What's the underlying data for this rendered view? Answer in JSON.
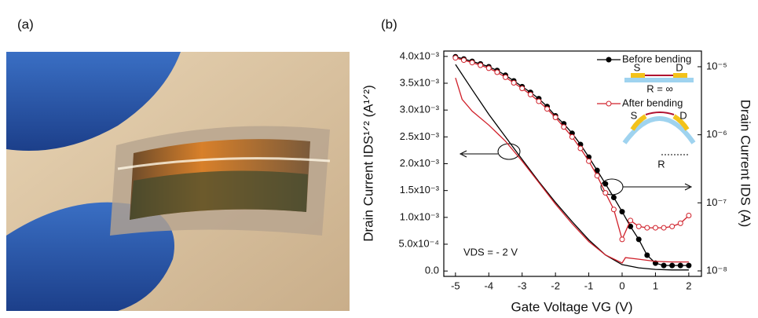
{
  "panel_a": {
    "label": "(a)"
  },
  "chart_data": {
    "type": "line",
    "panel_label": "(b)",
    "x_label": "Gate Voltage VG (V)",
    "y_label": "Drain Current IDS¹ᐟ² (A¹ᐟ²)",
    "y2_label": "Drain Current IDS (A)",
    "annotation": "VDS = - 2 V",
    "inset_labels": {
      "source": "S",
      "drain": "D",
      "flat_radius": "R = ∞",
      "bent_radius": "R"
    },
    "xlim": [
      -5.35,
      2.38
    ],
    "xticks": [
      -5,
      -4,
      -3,
      -2,
      -1,
      0,
      1,
      2
    ],
    "ylim": [
      -0.0001,
      0.0041
    ],
    "yticks": [
      {
        "value": 0,
        "label": "0.0"
      },
      {
        "value": 0.0005,
        "label": "5.0x10⁻⁴"
      },
      {
        "value": 0.001,
        "label": "1.0x10⁻³"
      },
      {
        "value": 0.0015,
        "label": "1.5x10⁻³"
      },
      {
        "value": 0.002,
        "label": "2.0x10⁻³"
      },
      {
        "value": 0.0025,
        "label": "2.5x10⁻³"
      },
      {
        "value": 0.003,
        "label": "3.0x10⁻³"
      },
      {
        "value": 0.0035,
        "label": "3.5x10⁻³"
      },
      {
        "value": 0.004,
        "label": "4.0x10⁻³"
      }
    ],
    "y2lim": [
      8.3e-09,
      1.7e-05
    ],
    "y2_log": true,
    "y2ticks": [
      {
        "value": 1e-08,
        "label": "10⁻⁸"
      },
      {
        "value": 1e-07,
        "label": "10⁻⁷"
      },
      {
        "value": 1e-06,
        "label": "10⁻⁶"
      },
      {
        "value": 1e-05,
        "label": "10⁻⁵"
      }
    ],
    "series": [
      {
        "name": "Before bending",
        "color": "#000000",
        "marker": "dot",
        "axis": "y2",
        "x": [
          -5,
          -4.75,
          -4.5,
          -4.25,
          -4,
          -3.75,
          -3.5,
          -3.25,
          -3,
          -2.75,
          -2.5,
          -2.25,
          -2,
          -1.75,
          -1.5,
          -1.25,
          -1,
          -0.75,
          -0.5,
          -0.25,
          0,
          0.25,
          0.5,
          0.75,
          1,
          1.25,
          1.5,
          1.75,
          2
        ],
        "values": [
          1.4e-05,
          1.3e-05,
          1.2e-05,
          1.1e-05,
          1e-05,
          8.8e-06,
          7.5e-06,
          6.2e-06,
          5.1e-06,
          4.2e-06,
          3.4e-06,
          2.6e-06,
          1.9e-06,
          1.45e-06,
          1.05e-06,
          7.2e-07,
          4.7e-07,
          3e-07,
          1.9e-07,
          1.2e-07,
          7.4e-08,
          4.5e-08,
          2.9e-08,
          1.7e-08,
          1.3e-08,
          1.2e-08,
          1.2e-08,
          1.2e-08,
          1.2e-08
        ]
      },
      {
        "name": "After bending",
        "color": "#d0202a",
        "marker": "circle",
        "axis": "y2",
        "x": [
          -5,
          -4.75,
          -4.5,
          -4.25,
          -4,
          -3.75,
          -3.5,
          -3.25,
          -3,
          -2.75,
          -2.5,
          -2.25,
          -2,
          -1.75,
          -1.5,
          -1.25,
          -1,
          -0.75,
          -0.5,
          -0.25,
          0,
          0.25,
          0.5,
          0.75,
          1,
          1.25,
          1.5,
          1.75,
          2
        ],
        "values": [
          1.35e-05,
          1.25e-05,
          1.15e-05,
          1.05e-05,
          9.5e-06,
          8.3e-06,
          7e-06,
          5.8e-06,
          4.8e-06,
          3.9e-06,
          3.1e-06,
          2.4e-06,
          1.8e-06,
          1.3e-06,
          9.3e-07,
          6.3e-07,
          4.1e-07,
          2.5e-07,
          1.4e-07,
          8e-08,
          2.9e-08,
          5.5e-08,
          4.5e-08,
          4.3e-08,
          4.3e-08,
          4.3e-08,
          4.5e-08,
          5e-08,
          6.5e-08
        ]
      },
      {
        "name": "Before bending",
        "color": "#000000",
        "axis": "y",
        "x": [
          -5,
          -4.5,
          -4,
          -3.5,
          -3,
          -2.5,
          -2,
          -1.5,
          -1,
          -0.5,
          0,
          0.5,
          1,
          1.5,
          2
        ],
        "values": [
          0.00385,
          0.00338,
          0.00292,
          0.0025,
          0.00208,
          0.00167,
          0.00128,
          0.00092,
          0.00058,
          0.0003,
          0.00012,
          6e-05,
          3e-05,
          2e-05,
          2e-05
        ]
      },
      {
        "name": "After bending",
        "color": "#d0202a",
        "axis": "y",
        "x": [
          -5,
          -4.8,
          -4.5,
          -4,
          -3.5,
          -3,
          -2.5,
          -2,
          -1.5,
          -1,
          -0.5,
          0,
          0.1,
          0.5,
          1,
          1.5,
          2
        ],
        "values": [
          0.0036,
          0.0032,
          0.00298,
          0.00272,
          0.00242,
          0.00205,
          0.00165,
          0.00125,
          0.00088,
          0.00055,
          0.0003,
          0.00015,
          0.00025,
          0.00022,
          0.00018,
          0.00017,
          0.00017
        ]
      }
    ]
  }
}
